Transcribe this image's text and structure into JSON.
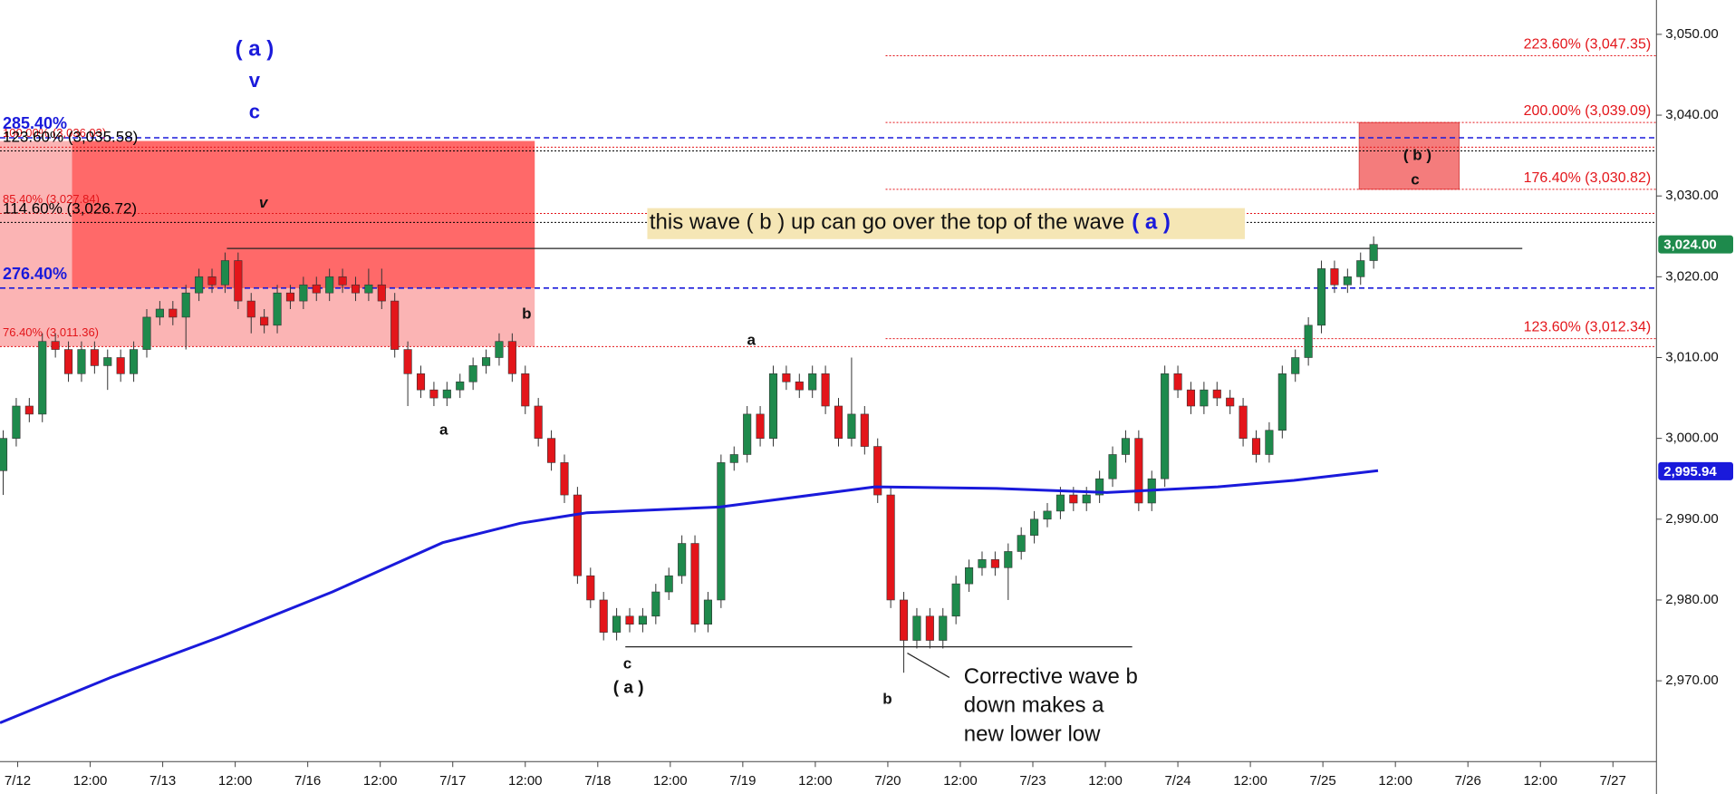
{
  "chart_data": {
    "type": "candlestick",
    "xlim": [
      -0.244,
      22.6
    ],
    "ylim": [
      2960,
      3054.25
    ],
    "xticks": [
      {
        "value": 0,
        "label": "7/12"
      },
      {
        "value": 1,
        "label": "12:00"
      },
      {
        "value": 2,
        "label": "7/13"
      },
      {
        "value": 3,
        "label": "12:00"
      },
      {
        "value": 4,
        "label": "7/16"
      },
      {
        "value": 5,
        "label": "12:00"
      },
      {
        "value": 6,
        "label": "7/17"
      },
      {
        "value": 7,
        "label": "12:00"
      },
      {
        "value": 8,
        "label": "7/18"
      },
      {
        "value": 9,
        "label": "12:00"
      },
      {
        "value": 10,
        "label": "7/19"
      },
      {
        "value": 11,
        "label": "12:00"
      },
      {
        "value": 12,
        "label": "7/20"
      },
      {
        "value": 13,
        "label": "12:00"
      },
      {
        "value": 14,
        "label": "7/23"
      },
      {
        "value": 15,
        "label": "12:00"
      },
      {
        "value": 16,
        "label": "7/24"
      },
      {
        "value": 17,
        "label": "12:00"
      },
      {
        "value": 18,
        "label": "7/25"
      },
      {
        "value": 19,
        "label": "12:00"
      },
      {
        "value": 20,
        "label": "7/26"
      },
      {
        "value": 21,
        "label": "12:00"
      },
      {
        "value": 22,
        "label": "7/27"
      }
    ],
    "yticks": [
      {
        "value": 3050,
        "label": "3,050.00"
      },
      {
        "value": 3040,
        "label": "3,040.00"
      },
      {
        "value": 3030,
        "label": "3,030.00"
      },
      {
        "value": 3020,
        "label": "3,020.00"
      },
      {
        "value": 3010,
        "label": "3,010.00"
      },
      {
        "value": 3000,
        "label": "3,000.00"
      },
      {
        "value": 2990,
        "label": "2,990.00"
      },
      {
        "value": 2980,
        "label": "2,980.00"
      },
      {
        "value": 2970,
        "label": "2,970.00"
      }
    ],
    "series": [
      {
        "type": "candlestick",
        "up_color": "#1e8a4c",
        "down_color": "#e3151a",
        "x": [
          -0.2,
          -0.02,
          0.16,
          0.34,
          0.52,
          0.7,
          0.88,
          1.06,
          1.24,
          1.42,
          1.6,
          1.78,
          1.96,
          2.14,
          2.32,
          2.5,
          2.68,
          2.86,
          3.04,
          3.22,
          3.4,
          3.58,
          3.76,
          3.94,
          4.12,
          4.3,
          4.48,
          4.66,
          4.84,
          5.02,
          5.2,
          5.38,
          5.56,
          5.74,
          5.92,
          6.1,
          6.28,
          6.46,
          6.64,
          6.82,
          7.0,
          7.18,
          7.36,
          7.54,
          7.72,
          7.9,
          8.08,
          8.26,
          8.44,
          8.62,
          8.8,
          8.98,
          9.16,
          9.34,
          9.52,
          9.7,
          9.88,
          10.06,
          10.24,
          10.42,
          10.6,
          10.78,
          10.96,
          11.14,
          11.32,
          11.5,
          11.68,
          11.86,
          12.04,
          12.22,
          12.4,
          12.58,
          12.76,
          12.94,
          13.12,
          13.3,
          13.48,
          13.66,
          13.84,
          14.02,
          14.2,
          14.38,
          14.56,
          14.74,
          14.92,
          15.1,
          15.28,
          15.46,
          15.64,
          15.82,
          16.0,
          16.18,
          16.36,
          16.54,
          16.72,
          16.9,
          17.08,
          17.26,
          17.44,
          17.62,
          17.8,
          17.98,
          18.16,
          18.34,
          18.52,
          18.7
        ],
        "values": [
          [
            2996,
            3001,
            2993,
            3000
          ],
          [
            3000,
            3005,
            2999,
            3004
          ],
          [
            3004,
            3005,
            3002,
            3003
          ],
          [
            3003,
            3013,
            3002,
            3012
          ],
          [
            3012,
            3013,
            3010,
            3011
          ],
          [
            3011,
            3012,
            3007,
            3008
          ],
          [
            3008,
            3012,
            3007,
            3011
          ],
          [
            3011,
            3012,
            3008,
            3009
          ],
          [
            3009,
            3011,
            3006,
            3010
          ],
          [
            3010,
            3011,
            3007,
            3008
          ],
          [
            3008,
            3012,
            3007,
            3011
          ],
          [
            3011,
            3016,
            3010,
            3015
          ],
          [
            3015,
            3017,
            3014,
            3016
          ],
          [
            3016,
            3017,
            3014,
            3015
          ],
          [
            3015,
            3019,
            3011,
            3018
          ],
          [
            3018,
            3021,
            3017,
            3020
          ],
          [
            3020,
            3021,
            3018,
            3019
          ],
          [
            3019,
            3023,
            3018,
            3022
          ],
          [
            3022,
            3023,
            3016,
            3017
          ],
          [
            3017,
            3018,
            3013,
            3015
          ],
          [
            3015,
            3016,
            3013,
            3014
          ],
          [
            3014,
            3019,
            3013,
            3018
          ],
          [
            3018,
            3019,
            3016,
            3017
          ],
          [
            3017,
            3020,
            3016,
            3019
          ],
          [
            3019,
            3020,
            3017,
            3018
          ],
          [
            3018,
            3021,
            3017,
            3020
          ],
          [
            3020,
            3021,
            3018,
            3019
          ],
          [
            3019,
            3020,
            3017,
            3018
          ],
          [
            3018,
            3021,
            3017,
            3019
          ],
          [
            3019,
            3021,
            3016,
            3017
          ],
          [
            3017,
            3018,
            3010,
            3011
          ],
          [
            3011,
            3012,
            3004,
            3008
          ],
          [
            3008,
            3009,
            3005,
            3006
          ],
          [
            3006,
            3007,
            3004,
            3005
          ],
          [
            3005,
            3007,
            3004,
            3006
          ],
          [
            3006,
            3008,
            3005,
            3007
          ],
          [
            3007,
            3010,
            3006,
            3009
          ],
          [
            3009,
            3011,
            3008,
            3010
          ],
          [
            3010,
            3013,
            3009,
            3012
          ],
          [
            3012,
            3013,
            3007,
            3008
          ],
          [
            3008,
            3009,
            3003,
            3004
          ],
          [
            3004,
            3005,
            2999,
            3000
          ],
          [
            3000,
            3001,
            2996,
            2997
          ],
          [
            2997,
            2998,
            2992,
            2993
          ],
          [
            2993,
            2994,
            2982,
            2983
          ],
          [
            2983,
            2984,
            2979,
            2980
          ],
          [
            2980,
            2981,
            2975,
            2976
          ],
          [
            2976,
            2979,
            2975,
            2978
          ],
          [
            2978,
            2979,
            2976,
            2977
          ],
          [
            2977,
            2979,
            2976,
            2978
          ],
          [
            2978,
            2982,
            2977,
            2981
          ],
          [
            2981,
            2984,
            2980,
            2983
          ],
          [
            2983,
            2988,
            2982,
            2987
          ],
          [
            2987,
            2988,
            2976,
            2977
          ],
          [
            2977,
            2981,
            2976,
            2980
          ],
          [
            2980,
            2998,
            2979,
            2997
          ],
          [
            2997,
            2999,
            2996,
            2998
          ],
          [
            2998,
            3004,
            2997,
            3003
          ],
          [
            3003,
            3004,
            2999,
            3000
          ],
          [
            3000,
            3009,
            2999,
            3008
          ],
          [
            3008,
            3009,
            3006,
            3007
          ],
          [
            3007,
            3008,
            3005,
            3006
          ],
          [
            3006,
            3009,
            3005,
            3008
          ],
          [
            3008,
            3009,
            3003,
            3004
          ],
          [
            3004,
            3005,
            2999,
            3000
          ],
          [
            3000,
            3010,
            2999,
            3003
          ],
          [
            3003,
            3004,
            2998,
            2999
          ],
          [
            2999,
            3000,
            2992,
            2993
          ],
          [
            2993,
            2994,
            2979,
            2980
          ],
          [
            2980,
            2981,
            2971,
            2975
          ],
          [
            2975,
            2979,
            2974,
            2978
          ],
          [
            2978,
            2979,
            2974,
            2975
          ],
          [
            2975,
            2979,
            2974,
            2978
          ],
          [
            2978,
            2983,
            2977,
            2982
          ],
          [
            2982,
            2985,
            2981,
            2984
          ],
          [
            2984,
            2986,
            2983,
            2985
          ],
          [
            2985,
            2986,
            2983,
            2984
          ],
          [
            2984,
            2987,
            2980,
            2986
          ],
          [
            2986,
            2989,
            2985,
            2988
          ],
          [
            2988,
            2991,
            2987,
            2990
          ],
          [
            2990,
            2992,
            2989,
            2991
          ],
          [
            2991,
            2994,
            2990,
            2993
          ],
          [
            2993,
            2994,
            2991,
            2992
          ],
          [
            2992,
            2994,
            2991,
            2993
          ],
          [
            2993,
            2996,
            2992,
            2995
          ],
          [
            2995,
            2999,
            2994,
            2998
          ],
          [
            2998,
            3001,
            2997,
            3000
          ],
          [
            3000,
            3001,
            2991,
            2992
          ],
          [
            2992,
            2996,
            2991,
            2995
          ],
          [
            2995,
            3009,
            2994,
            3008
          ],
          [
            3008,
            3009,
            3005,
            3006
          ],
          [
            3006,
            3007,
            3003,
            3004
          ],
          [
            3004,
            3007,
            3003,
            3006
          ],
          [
            3006,
            3007,
            3004,
            3005
          ],
          [
            3005,
            3006,
            3003,
            3004
          ],
          [
            3004,
            3005,
            2999,
            3000
          ],
          [
            3000,
            3001,
            2997,
            2998
          ],
          [
            2998,
            3002,
            2997,
            3001
          ],
          [
            3001,
            3009,
            3000,
            3008
          ],
          [
            3008,
            3011,
            3007,
            3010
          ],
          [
            3010,
            3015,
            3009,
            3014
          ],
          [
            3014,
            3022,
            3013,
            3021
          ],
          [
            3021,
            3022,
            3018,
            3019
          ],
          [
            3019,
            3021,
            3018,
            3020
          ],
          [
            3020,
            3023,
            3019,
            3022
          ],
          [
            3022,
            3025,
            3021,
            3024
          ]
        ]
      },
      {
        "type": "line",
        "color": "#1a1adb",
        "x": [
          -0.244,
          1.28,
          2.81,
          4.34,
          5.86,
          6.93,
          7.85,
          9.68,
          11.82,
          13.5,
          15.02,
          16.55,
          17.6,
          18.76
        ],
        "values": [
          2964.8,
          2970.4,
          2975.5,
          2981,
          2987.1,
          2989.5,
          2990.8,
          2991.5,
          2994,
          2993.8,
          2993.3,
          2994,
          2994.8,
          2996
        ]
      }
    ],
    "last_values": [
      {
        "value": 3024,
        "label": "3,024.00",
        "color": "#1e8a4c"
      },
      {
        "value": 2995.94,
        "label": "2,995.94",
        "color": "#1a1adb"
      }
    ],
    "zones": [
      {
        "x0": -0.244,
        "x1": 7.13,
        "top": 3036.8,
        "bottom": 3011.36,
        "color": "#fbb4b4"
      },
      {
        "x0": 0.75,
        "x1": 7.13,
        "top": 3036.8,
        "bottom": 3018.6,
        "color": "#ff5c5c"
      },
      {
        "x0": 18.5,
        "x1": 19.88,
        "top": 3039.09,
        "bottom": 3030.82,
        "color": "#f47c7c"
      }
    ],
    "levels": [
      {
        "label": "285.40%",
        "value": 3037.2,
        "color": "#1a1adb",
        "style": "dashed"
      },
      {
        "label": "276.40%",
        "value": 3018.6,
        "color": "#1a1adb",
        "style": "dashed"
      },
      {
        "label": "100.00% (3,036.03)",
        "value": 3036.03,
        "color": "#e3151a",
        "style": "dotted"
      },
      {
        "label": "123.60% (3,035.58)",
        "value": 3035.58,
        "color": "#000000",
        "style": "dotted"
      },
      {
        "label": "85.40% (3,027.84)",
        "value": 3027.84,
        "color": "#e3151a",
        "style": "dotted"
      },
      {
        "label": "114.60% (3,026.72)",
        "value": 3026.72,
        "color": "#000000",
        "style": "dotted"
      },
      {
        "label": "76.40% (3,011.36)",
        "value": 3011.36,
        "color": "#e3151a",
        "style": "dotted"
      }
    ],
    "fib_color": "#e3151a",
    "fib_start": 11.97,
    "fib_levels": [
      {
        "label": "223.60% (3,047.35)",
        "value": 3047.35
      },
      {
        "label": "200.00% (3,039.09)",
        "value": 3039.09
      },
      {
        "label": "176.40% (3,030.82)",
        "value": 3030.82
      },
      {
        "label": "123.60% (3,012.34)",
        "value": 3012.34
      }
    ],
    "segments": [
      {
        "x": [
          2.885,
          20.75
        ],
        "values": [
          3023.5,
          3023.5
        ]
      },
      {
        "x": [
          8.38,
          15.37
        ],
        "values": [
          2974.2,
          2974.2
        ]
      }
    ],
    "annotations": [
      "( a )",
      "v",
      "c",
      "v",
      "b",
      "a",
      "a",
      "c",
      "( a )",
      "b",
      "( b )",
      "c",
      "Corrective wave b",
      "down makes a",
      "new lower low"
    ],
    "callout": {
      "text": "this wave ( b ) up can go over the top of the wave",
      "highlight": "( a )"
    }
  }
}
